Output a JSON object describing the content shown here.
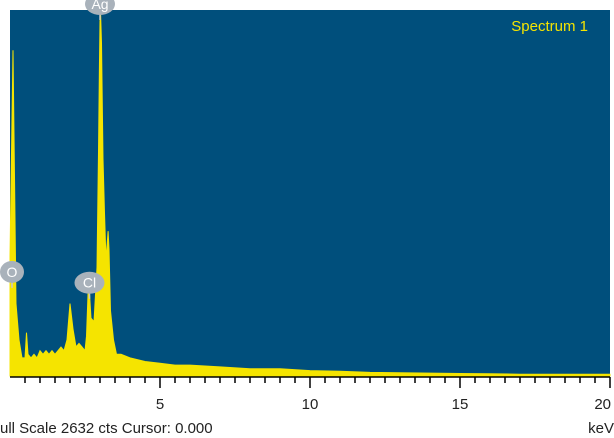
{
  "chart_data": {
    "type": "area",
    "title": "",
    "xlabel": "",
    "ylabel": "",
    "legend": "top-right",
    "series": [
      {
        "name": "Spectrum 1",
        "color": "#f5e400",
        "points": [
          [
            0.0,
            0.33
          ],
          [
            0.1,
            0.9
          ],
          [
            0.2,
            0.2
          ],
          [
            0.3,
            0.1
          ],
          [
            0.4,
            0.05
          ],
          [
            0.5,
            0.05
          ],
          [
            0.55,
            0.12
          ],
          [
            0.6,
            0.06
          ],
          [
            0.7,
            0.05
          ],
          [
            0.8,
            0.06
          ],
          [
            0.9,
            0.05
          ],
          [
            1.0,
            0.07
          ],
          [
            1.1,
            0.06
          ],
          [
            1.2,
            0.07
          ],
          [
            1.3,
            0.06
          ],
          [
            1.4,
            0.07
          ],
          [
            1.5,
            0.06
          ],
          [
            1.6,
            0.07
          ],
          [
            1.7,
            0.08
          ],
          [
            1.8,
            0.07
          ],
          [
            1.9,
            0.1
          ],
          [
            2.0,
            0.2
          ],
          [
            2.1,
            0.13
          ],
          [
            2.2,
            0.08
          ],
          [
            2.3,
            0.09
          ],
          [
            2.4,
            0.08
          ],
          [
            2.5,
            0.07
          ],
          [
            2.55,
            0.11
          ],
          [
            2.62,
            0.27
          ],
          [
            2.7,
            0.16
          ],
          [
            2.8,
            0.15
          ],
          [
            2.9,
            0.3
          ],
          [
            2.95,
            0.62
          ],
          [
            2.98,
            0.85
          ],
          [
            3.0,
            0.98
          ],
          [
            3.02,
            1.0
          ],
          [
            3.05,
            0.92
          ],
          [
            3.1,
            0.6
          ],
          [
            3.15,
            0.45
          ],
          [
            3.2,
            0.32
          ],
          [
            3.27,
            0.4
          ],
          [
            3.3,
            0.35
          ],
          [
            3.35,
            0.18
          ],
          [
            3.45,
            0.1
          ],
          [
            3.55,
            0.06
          ],
          [
            3.7,
            0.06
          ],
          [
            4.0,
            0.05
          ],
          [
            4.5,
            0.04
          ],
          [
            5.0,
            0.035
          ],
          [
            5.5,
            0.03
          ],
          [
            6.0,
            0.03
          ],
          [
            7.0,
            0.025
          ],
          [
            8.0,
            0.02
          ],
          [
            9.0,
            0.02
          ],
          [
            10.0,
            0.015
          ],
          [
            11.0,
            0.013
          ],
          [
            12.0,
            0.01
          ],
          [
            13.0,
            0.009
          ],
          [
            14.0,
            0.008
          ],
          [
            15.0,
            0.007
          ],
          [
            16.0,
            0.006
          ],
          [
            17.0,
            0.005
          ],
          [
            18.0,
            0.005
          ],
          [
            19.0,
            0.005
          ],
          [
            20.0,
            0.005
          ]
        ]
      }
    ],
    "xlim": [
      0.0,
      20.0
    ],
    "ylim": [
      0,
      1.0
    ],
    "x_ticks_labeled": [
      "5",
      "10",
      "15",
      "20"
    ],
    "x_tick_values": [
      5,
      10,
      15,
      20
    ],
    "peaks": [
      {
        "label": "O",
        "x": 0.0,
        "y": 0.26
      },
      {
        "label": "Ag",
        "x": 3.0,
        "y": 1.0
      },
      {
        "label": "Cl",
        "x": 2.65,
        "y": 0.23
      }
    ],
    "background_color": "#004f7c",
    "spectrum_label_color": "#f5e400"
  },
  "chart_legend": "Spectrum 1",
  "status": {
    "full_scale": "ull Scale 2632 cts Cursor: 0.000",
    "unit": "keV"
  }
}
